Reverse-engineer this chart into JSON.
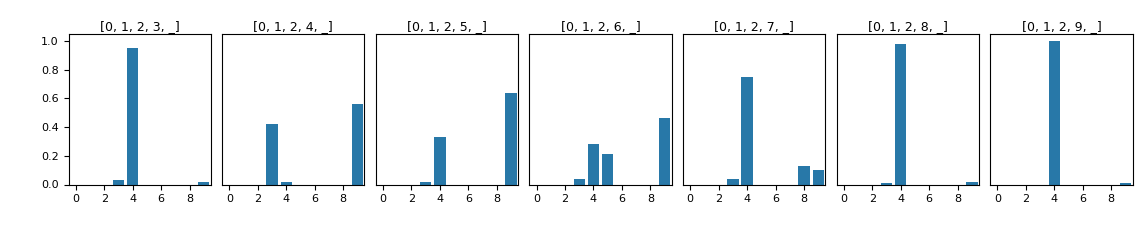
{
  "subplots": [
    {
      "title": "[0, 1, 2, 3, _]",
      "values": [
        0,
        0,
        0,
        0.03,
        0.95,
        0,
        0,
        0,
        0,
        0.02
      ]
    },
    {
      "title": "[0, 1, 2, 4, _]",
      "values": [
        0,
        0,
        0,
        0.42,
        0.02,
        0,
        0,
        0,
        0,
        0.56
      ]
    },
    {
      "title": "[0, 1, 2, 5, _]",
      "values": [
        0,
        0,
        0,
        0.02,
        0.33,
        0,
        0,
        0,
        0,
        0.64
      ]
    },
    {
      "title": "[0, 1, 2, 6, _]",
      "values": [
        0,
        0,
        0,
        0.04,
        0.28,
        0.21,
        0,
        0,
        0,
        0.46
      ]
    },
    {
      "title": "[0, 1, 2, 7, _]",
      "values": [
        0,
        0,
        0,
        0.04,
        0.75,
        0,
        0,
        0,
        0.13,
        0.1
      ]
    },
    {
      "title": "[0, 1, 2, 8, _]",
      "values": [
        0,
        0,
        0,
        0.01,
        0.98,
        0,
        0,
        0,
        0,
        0.02
      ]
    },
    {
      "title": "[0, 1, 2, 9, _]",
      "values": [
        0,
        0,
        0,
        0,
        1.0,
        0,
        0,
        0,
        0,
        0.01
      ]
    }
  ],
  "bar_color": "#2878a8",
  "xlim": [
    -0.5,
    9.5
  ],
  "ylim": [
    0,
    1.05
  ],
  "xticks": [
    0,
    2,
    4,
    6,
    8
  ],
  "yticks": [
    0.0,
    0.2,
    0.4,
    0.6,
    0.8,
    1.0
  ],
  "bar_width": 0.8,
  "figsize": [
    11.44,
    2.25
  ],
  "dpi": 100,
  "title_fontsize": 9,
  "tick_labelsize": 8
}
